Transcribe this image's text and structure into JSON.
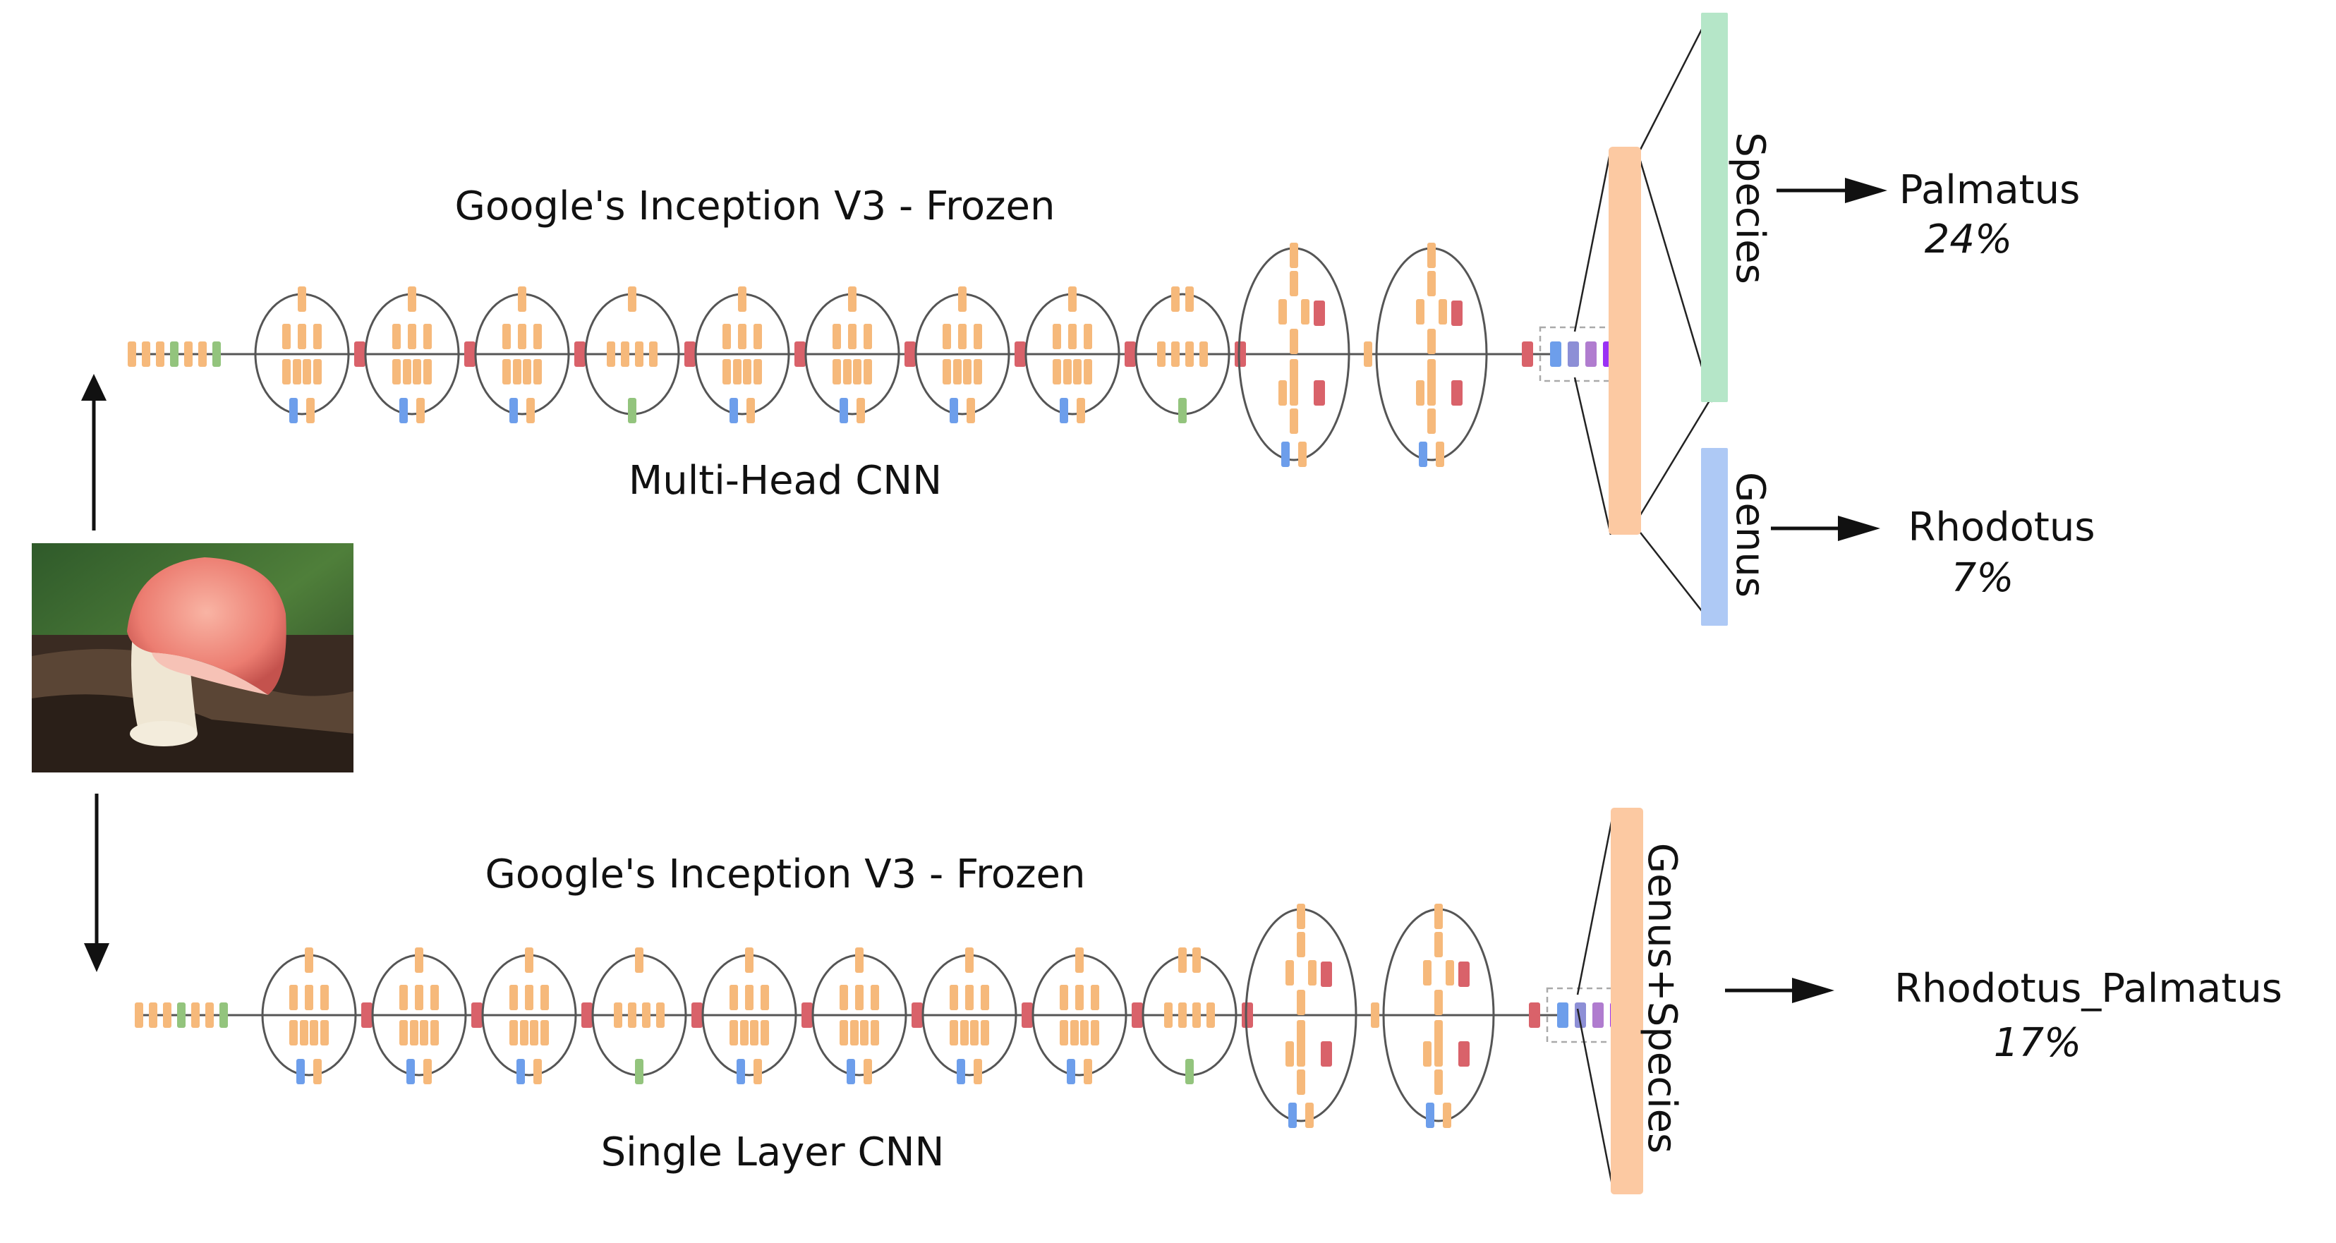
{
  "top": {
    "title": "Google's Inception V3 - Frozen",
    "subtitle": "Multi-Head CNN",
    "heads": [
      {
        "name": "Species",
        "prediction": "Palmatus",
        "confidence": "24%"
      },
      {
        "name": "Genus",
        "prediction": "Rhodotus",
        "confidence": "7%"
      }
    ]
  },
  "bottom": {
    "title": "Google's Inception V3 - Frozen",
    "subtitle": "Single Layer CNN",
    "head": {
      "name": "Genus+Species",
      "prediction": "Rhodotus_Palmatus",
      "confidence": "17%"
    }
  },
  "colors": {
    "conv": "#f6b97b",
    "pool": "#d9626a",
    "concat_green": "#93c47d",
    "concat_blue": "#6d9eeb",
    "dense_peach": "#fcc9a2",
    "species_head": "#b5e6c8",
    "genus_head": "#aec9f5",
    "softmax_purple": "#9a31f5",
    "line": "#555555"
  },
  "icons": {
    "input_image": "mushroom-photo",
    "arrows": "arrow-icon"
  }
}
